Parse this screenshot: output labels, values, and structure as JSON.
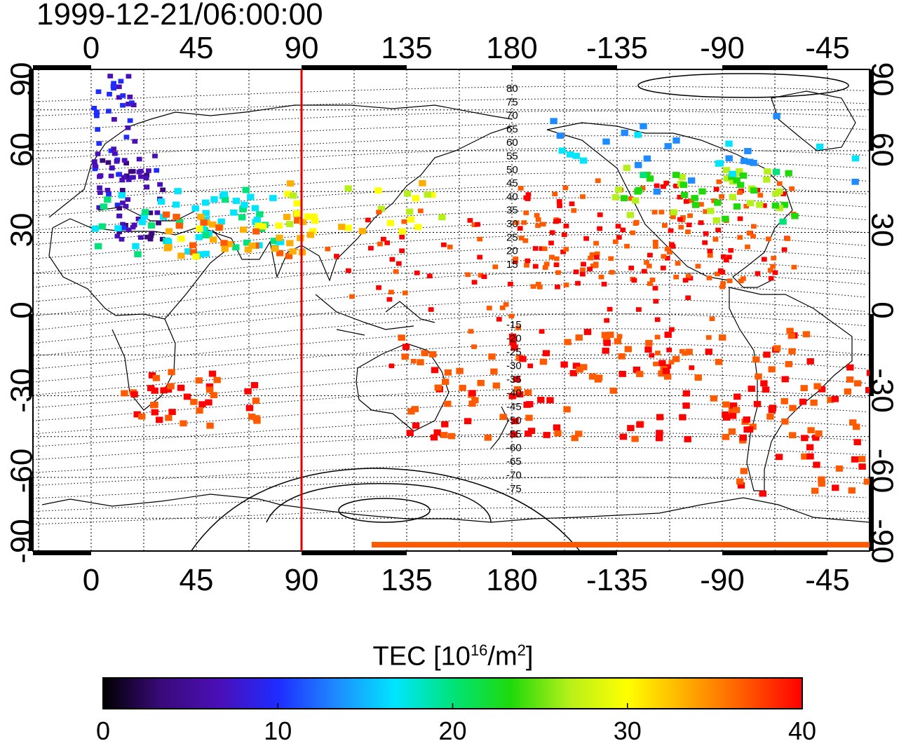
{
  "timestamp": "1999-12-21/06:00:00",
  "axes": {
    "lon_ticks": [
      "0",
      "45",
      "90",
      "135",
      "180",
      "-135",
      "-90",
      "-45"
    ],
    "lat_ticks": [
      "90",
      "60",
      "30",
      "0",
      "-30",
      "-60",
      "-90"
    ]
  },
  "colorbar": {
    "label_prefix": "TEC  [10",
    "label_sup1": "16",
    "label_mid": "/m",
    "label_sup2": "2",
    "label_suffix": "]",
    "ticks": [
      "0",
      "10",
      "20",
      "30",
      "40"
    ],
    "range": [
      0,
      40
    ],
    "colors": [
      "#000000",
      "#3a0a7a",
      "#4b0fb8",
      "#1e2cff",
      "#1e8bff",
      "#00e5ff",
      "#00e37a",
      "#1fd90a",
      "#b5f01a",
      "#ffff00",
      "#ffae00",
      "#ff5a00",
      "#ff0000"
    ]
  },
  "contour_labels": {
    "north": [
      "80",
      "75",
      "70",
      "65",
      "60",
      "55",
      "50",
      "45",
      "40",
      "35",
      "30",
      "25",
      "20",
      "15"
    ],
    "south": [
      "-15",
      "-20",
      "-25",
      "-30",
      "-35",
      "-40",
      "-45",
      "-50",
      "-55",
      "-60",
      "-65",
      "-70",
      "-75"
    ]
  },
  "marker_line": {
    "longitude": 90,
    "color": "#e00000"
  }
}
